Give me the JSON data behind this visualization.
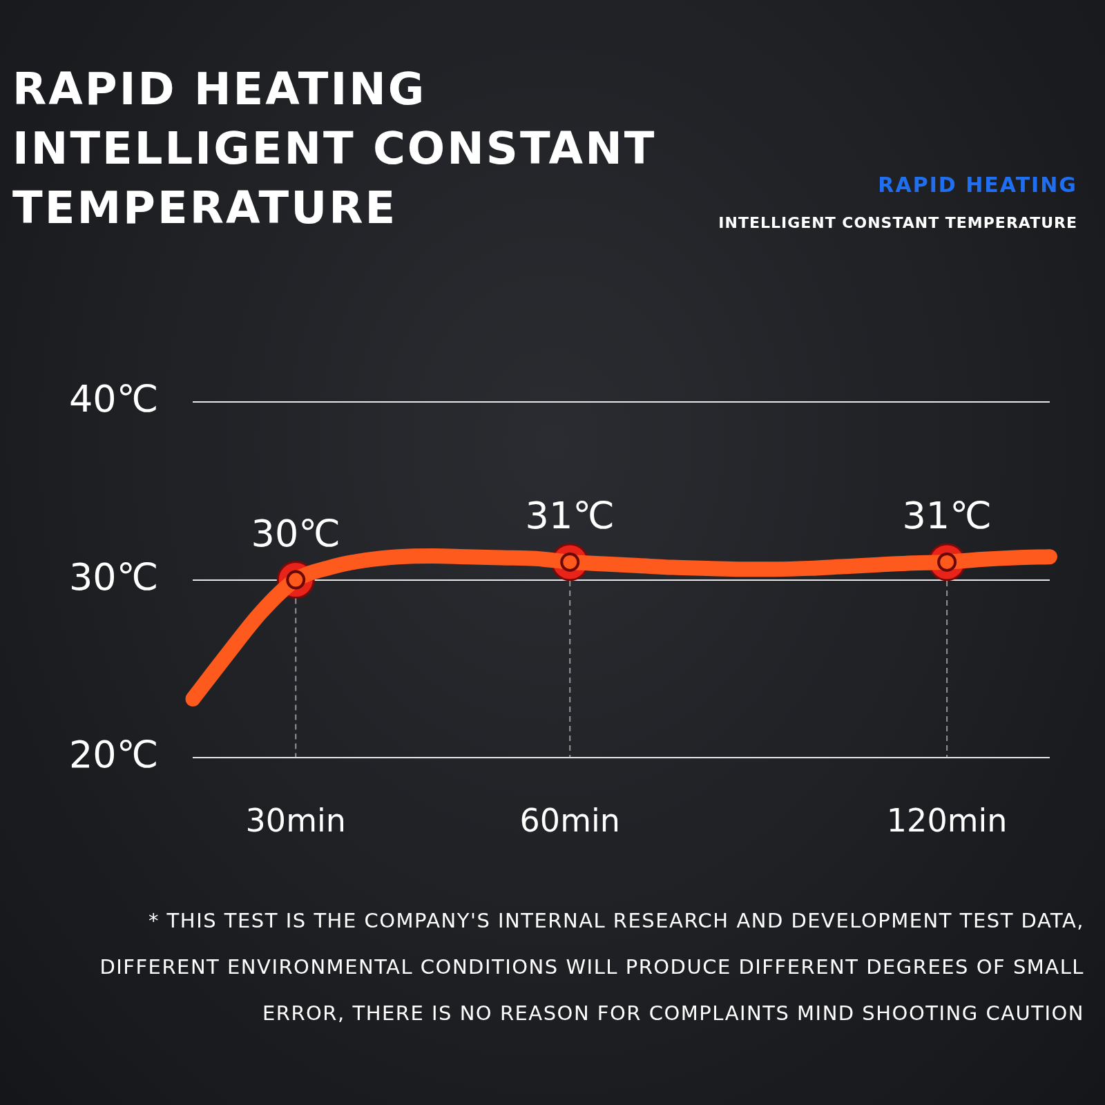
{
  "chart_data": {
    "type": "line",
    "title": "RAPID HEATING INTELLIGENT CONSTANT TEMPERATURE",
    "subtitle": "RAPID HEATING",
    "annotations": [
      "INTELLIGENT CONSTANT TEMPERATURE",
      "* THIS TEST IS THE COMPANY'S INTERNAL RESEARCH AND DEVELOPMENT TEST DATA, DIFFERENT ENVIRONMENTAL CONDITIONS WILL PRODUCE DIFFERENT DEGREES OF SMALL ERROR, THERE IS NO REASON FOR COMPLAINTS MIND SHOOTING CAUTION"
    ],
    "categories": [
      null,
      null,
      null,
      "30min",
      null,
      null,
      null,
      null,
      null,
      null,
      null,
      "60min",
      null,
      null,
      null,
      null,
      null,
      null,
      null,
      null,
      null,
      null,
      "120min",
      null,
      null,
      null
    ],
    "series": [
      {
        "color": "#ff5a1e",
        "values": [
          23.3,
          25.8,
          28.2,
          30,
          30.7,
          31.1,
          31.3,
          31.35,
          31.3,
          31.25,
          31.2,
          31,
          30.9,
          30.8,
          30.7,
          30.65,
          30.6,
          30.6,
          30.65,
          30.75,
          30.85,
          30.95,
          31,
          31.15,
          31.25,
          31.3
        ]
      },
      {
        "type": "scatter",
        "color": "#e8231a",
        "x": [
          "30min",
          "60min",
          "120min"
        ],
        "values": [
          30,
          31,
          31
        ],
        "value_labels": [
          "30℃",
          "31℃",
          "31℃"
        ]
      }
    ],
    "ylim": [
      20,
      40
    ],
    "yticks": [
      {
        "value": 20,
        "label": "20℃"
      },
      {
        "value": 30,
        "label": "30℃"
      },
      {
        "value": 40,
        "label": "40℃"
      }
    ],
    "grid": "y",
    "legend": false
  }
}
